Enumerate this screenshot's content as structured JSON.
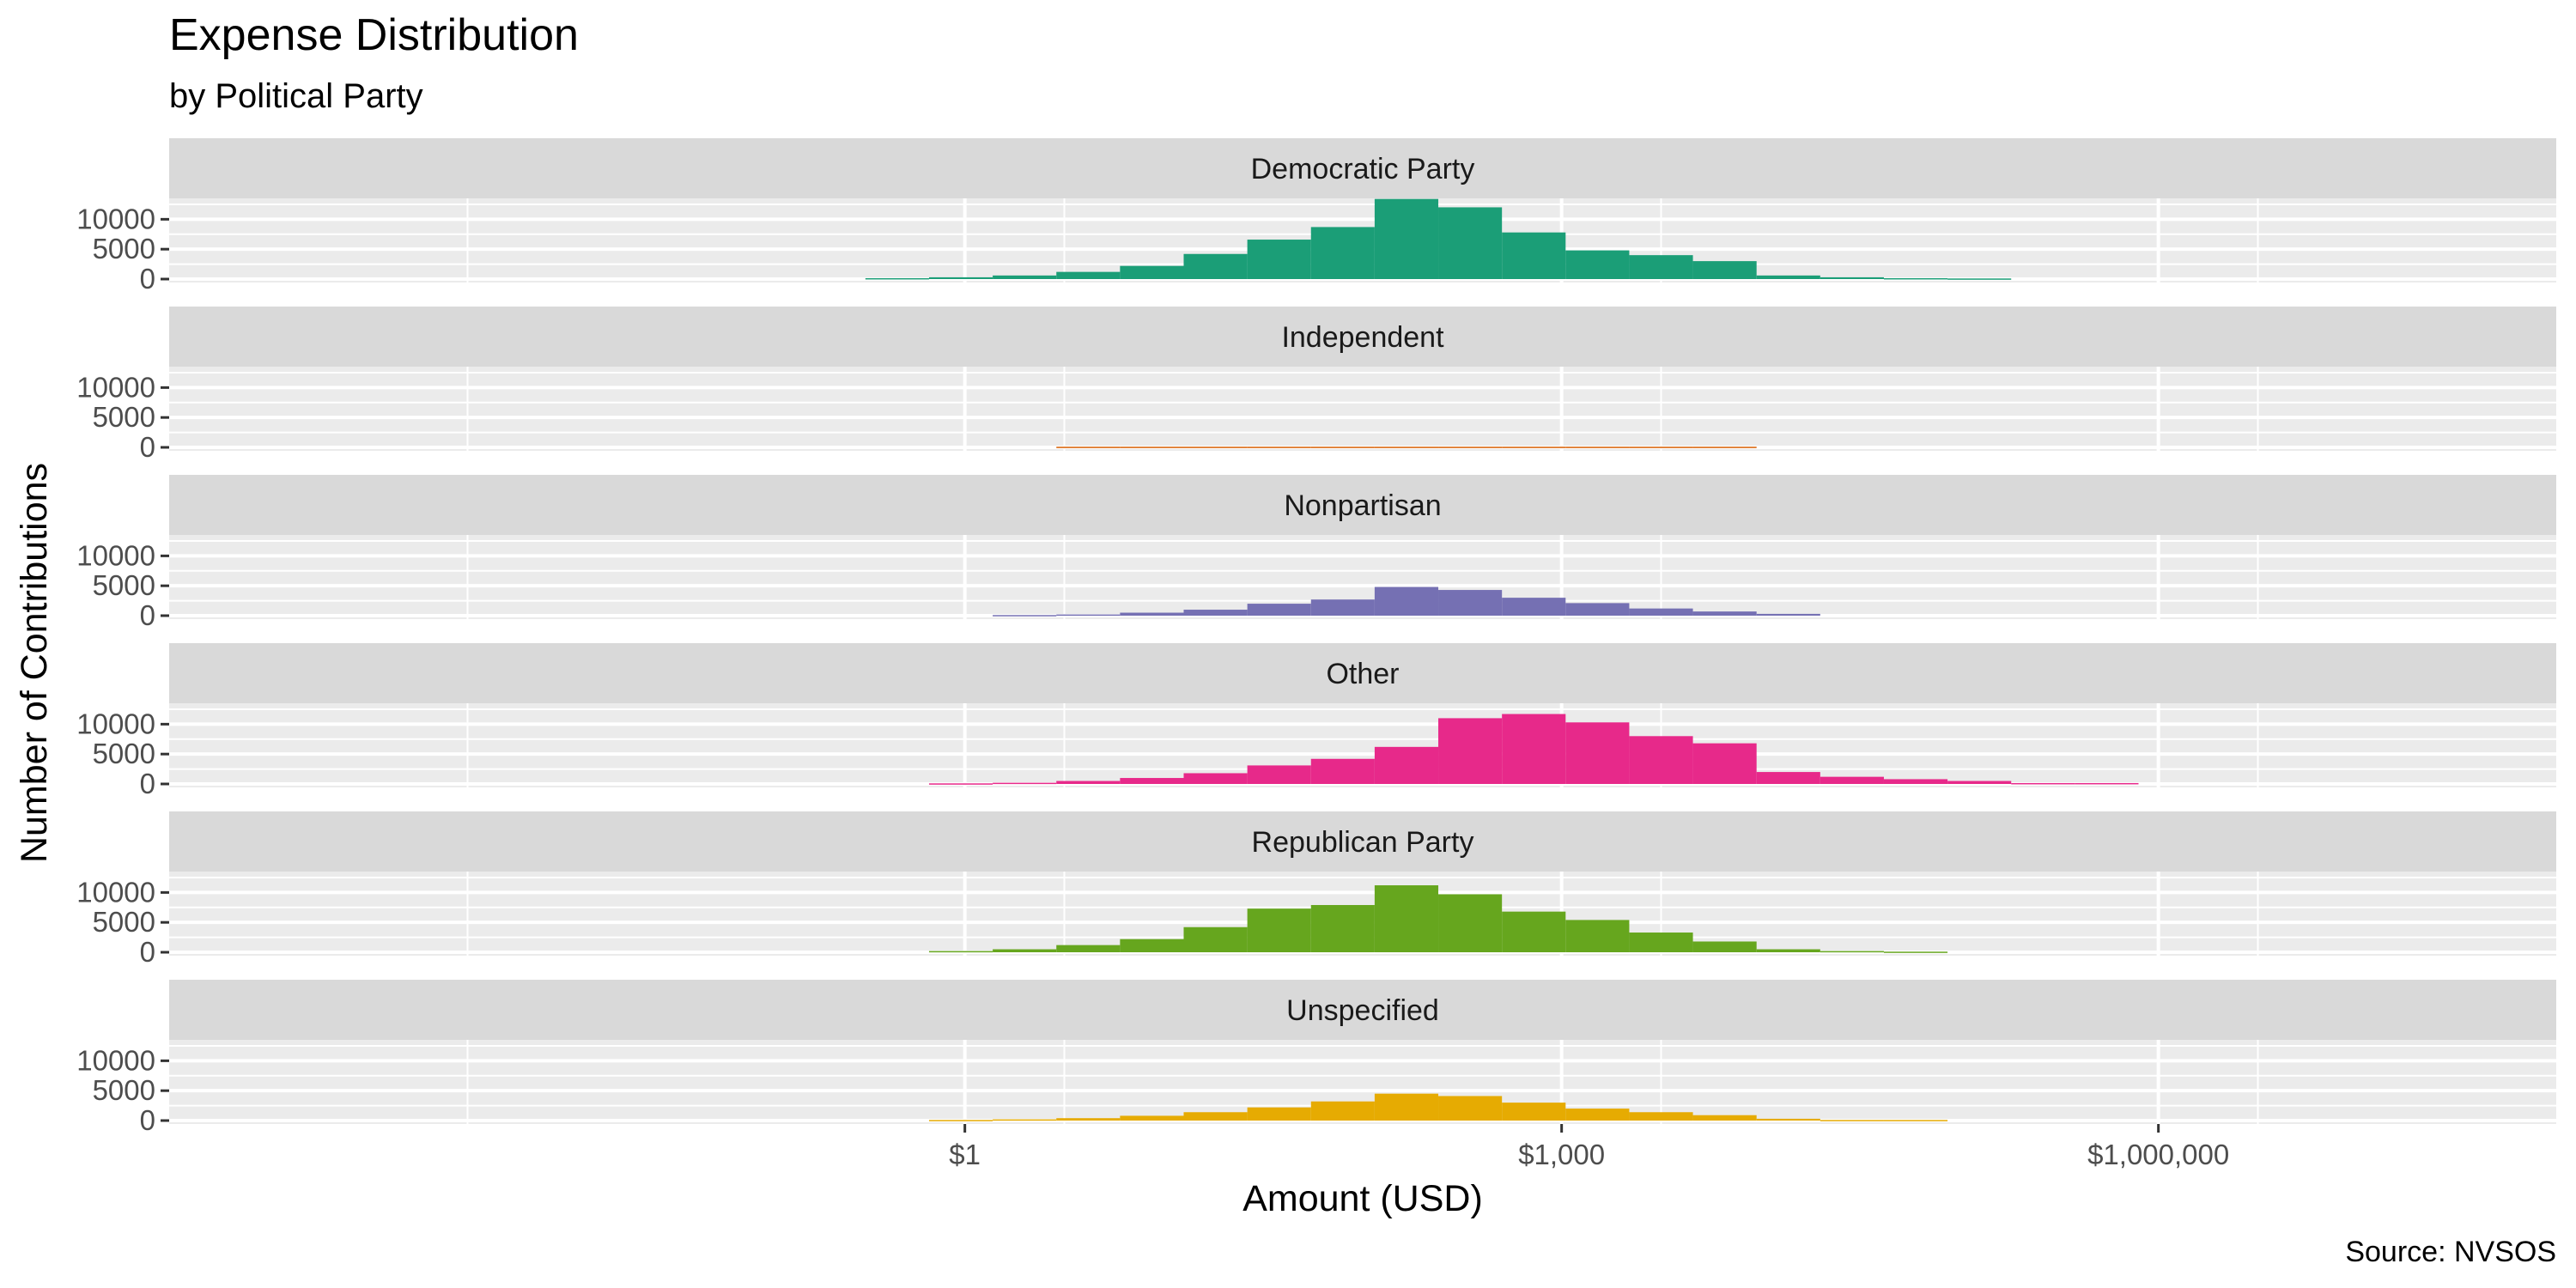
{
  "chart_data": {
    "type": "bar",
    "title": "Expense Distribution",
    "subtitle": "by Political Party",
    "xlabel": "Amount (USD)",
    "ylabel": "Number of Contributions",
    "caption": "Source: NVSOS",
    "x_scale": "log10",
    "xlim": [
      0.0001,
      100000000
    ],
    "ylim": [
      0,
      13500
    ],
    "x_ticks": [
      {
        "value": 1,
        "label": "$1"
      },
      {
        "value": 1000,
        "label": "$1,000"
      },
      {
        "value": 1000000,
        "label": "$1,000,000"
      }
    ],
    "y_ticks": [
      {
        "value": 0,
        "label": "0"
      },
      {
        "value": 5000,
        "label": "5000"
      },
      {
        "value": 10000,
        "label": "10000"
      }
    ],
    "bin_edges_log10": [
      -0.5,
      -0.18,
      0.14,
      0.46,
      0.78,
      1.1,
      1.42,
      1.74,
      2.06,
      2.38,
      2.7,
      3.02,
      3.34,
      3.66,
      3.98,
      4.3,
      4.62,
      4.94,
      5.26,
      5.58,
      5.9
    ],
    "panels": [
      {
        "name": "Democratic Party",
        "color": "#1b9e77",
        "counts": [
          150,
          300,
          600,
          1200,
          2200,
          4200,
          6600,
          8700,
          13400,
          12000,
          7800,
          4800,
          4000,
          3000,
          600,
          300,
          150,
          100,
          0,
          0
        ]
      },
      {
        "name": "Independent",
        "color": "#d95f02",
        "counts": [
          0,
          0,
          0,
          100,
          100,
          100,
          100,
          100,
          100,
          100,
          100,
          100,
          100,
          100,
          0,
          0,
          0,
          0,
          0,
          0
        ]
      },
      {
        "name": "Nonpartisan",
        "color": "#7570b3",
        "counts": [
          0,
          0,
          100,
          200,
          500,
          1000,
          2000,
          2700,
          4800,
          4300,
          3000,
          2100,
          1200,
          700,
          300,
          0,
          0,
          0,
          0,
          0
        ]
      },
      {
        "name": "Other",
        "color": "#e7298a",
        "counts": [
          0,
          100,
          200,
          500,
          1000,
          1800,
          3100,
          4200,
          6200,
          11000,
          11700,
          10300,
          8000,
          6800,
          2000,
          1200,
          800,
          500,
          150,
          150
        ]
      },
      {
        "name": "Republican Party",
        "color": "#66a61e",
        "counts": [
          0,
          200,
          500,
          1200,
          2200,
          4200,
          7300,
          7900,
          11200,
          9700,
          6800,
          5400,
          3300,
          1800,
          500,
          200,
          100,
          0,
          0,
          0
        ]
      },
      {
        "name": "Unspecified",
        "color": "#e6ab02",
        "counts": [
          0,
          100,
          200,
          400,
          800,
          1400,
          2200,
          3200,
          4500,
          4100,
          3000,
          2000,
          1400,
          900,
          300,
          100,
          100,
          0,
          0,
          0
        ]
      }
    ]
  }
}
